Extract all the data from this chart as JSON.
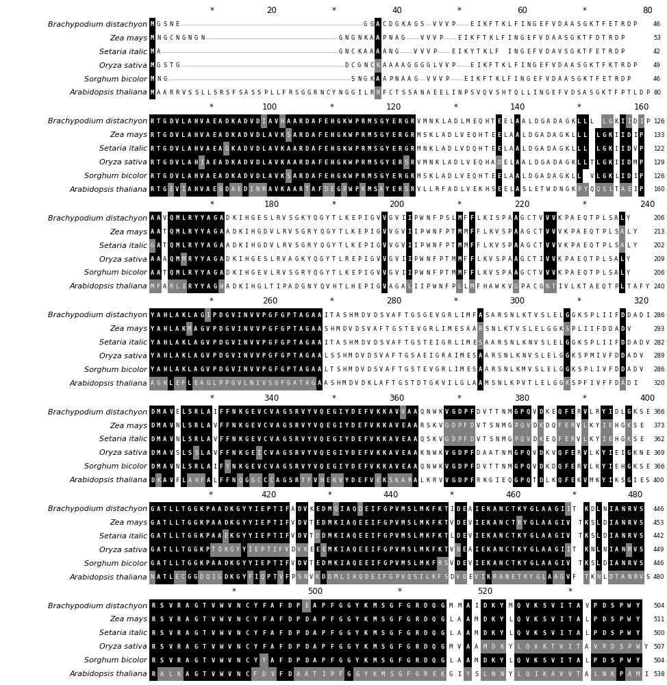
{
  "fig_width": 9.74,
  "fig_height": 10.0,
  "dpi": 100,
  "background": "#ffffff",
  "seq_font_size": 6.2,
  "species_font_size": 8.0,
  "ruler_font_size": 8.5,
  "color_conserved": "#111111",
  "color_similar": "#888888",
  "color_gap_line": "#aaaaaa",
  "blocks": [
    {
      "ruler": [
        [
          "*",
          10
        ],
        [
          "20",
          19.5
        ],
        [
          "*",
          29.5
        ],
        [
          "40",
          39.5
        ],
        [
          "*",
          49.5
        ],
        [
          "60",
          59.5
        ],
        [
          "*",
          69.5
        ],
        [
          "80",
          79.5
        ]
      ],
      "seqs": [
        [
          "Brachypodium distachyon",
          "MGSNE-----------------------------GGACDGKAGS-VVVP--EIKFTKLFINGEFVDAASGKTFETRDP",
          46
        ],
        [
          "Zea mays",
          "MNGCNGNGN---------------------GNGNKAAPNAG--VVVP--EIKFTKLFINGEFVDAASGKTFDTRDP",
          53
        ],
        [
          "Setaria italic",
          "MA----------------------------GNCKAAAANG--VVVP--EIKYTKLF INGEFVDAVSGKTFETRDP",
          42
        ],
        [
          "Oryza sativa",
          "MGSTG--------------------------DCGNCKAAAAGGGGLVVP--EIKFTKLFINGEFVDAASGKTFKTRDP",
          49
        ],
        [
          "Sorghum bicolor",
          "MNG-----------------------------SNGKAAPNAAG-VVVP--EIKFTKLFINGEFVDAASGKTFETRDP",
          46
        ],
        [
          "Arabidopsis thaliana",
          "MAARRVSSLLSRSFSASSPLLFRSGGRNCYNGGILRRFCTSSANAEELINPSVQVSHTQLLINGEFVDSASGKTFPTLDP",
          80
        ]
      ]
    },
    {
      "ruler": [
        [
          "*",
          10
        ],
        [
          "100",
          19.5
        ],
        [
          "*",
          29.5
        ],
        [
          "120",
          39.5
        ],
        [
          "*",
          49.5
        ],
        [
          "140",
          59.5
        ],
        [
          "*",
          69.5
        ],
        [
          "160",
          79.5
        ]
      ],
      "seqs": [
        [
          "Brachypodium distachyon",
          "RTGDVLAHVAEADKADVDIAVHAARDAFEHGKWPRMSGYERGRVMNKLADLMEQHTEELAALDGADAGKLLL LGKIIDIP",
          126
        ],
        [
          "Zea mays",
          "RTGDVLAHVAEADKADVDLAVKSARDAFEHGKWPRMSGYERGRMSKLADLVEQHTEELAALDGADAGKLLL LGKIIDIP",
          133
        ],
        [
          "Setaria italic",
          "RTGDVLAHVAEAGKADVDLAVKAARDAFEHGKWPRMSGYERGRMNKLADLVDQHTEELAALDGADAGKLLL LGKIIDVP",
          122
        ],
        [
          "Oryza sativa",
          "RTGDVLAHIAEADKADVDLAVKAARDAFEHGKWPRMSGYERSRVMNKLADLVEQHADELAALDGADAGKLLTLGKIIDMP",
          129
        ],
        [
          "Sorghum bicolor",
          "RTGDVLAHVAEADKADVDLAVKSARDAFEHGKWPRMSGYERGRMSKLADLVEQHTEELAALDGADAGKLL VLGKLIDIP",
          126
        ],
        [
          "Arabidopsis thaliana",
          "RTGEVIAHVAEGDAEDINRAVKAARTAFDEGPWPKMSAYERSRVLLRFADLVEKHSEELASLETWDNGKPYQQSLTAEIP",
          160
        ]
      ]
    },
    {
      "ruler": [
        [
          "*",
          10
        ],
        [
          "180",
          19.5
        ],
        [
          "*",
          29.5
        ],
        [
          "200",
          39.5
        ],
        [
          "*",
          49.5
        ],
        [
          "220",
          59.5
        ],
        [
          "*",
          69.5
        ],
        [
          "240",
          79.5
        ]
      ],
      "seqs": [
        [
          "Brachypodium distachyon",
          "AAVQMLRYYAGADKIHGESLRVSGKYQGYTLKEPIGVVGVIIPWNFPSLMFFLKISPAAGCTVVVKPAEQTPLSALY",
          206
        ],
        [
          "Zea mays",
          "AATQMLRYYAGAADKIHGDVLRVSGRYQGYTLKEPIGVVGVIIPWNFPTMMFFLKVSPAAGCTVVVKPAEQTPLSALY",
          213
        ],
        [
          "Setaria italic",
          "GATQMLRYYAGAADKIHGDVLRVSGRYQGYTLKEPIGVVGVIIPWNFPTMMFFLKVSPAAGCTVVVKPAEQTPLSALY",
          202
        ],
        [
          "Oryza sativa",
          "AAAQMMRYYAGADKIHGESLRVAGKYQGYTLREPIGVVGVIIPWNFPTMMFFLKVSPAAGCTIVVKPAEQTPLSALY",
          209
        ],
        [
          "Sorghum bicolor",
          "AATQMLRYYAGADKIHGEVLRVSGRYQGYTLKEPIGVVGVIIPWNFPTMMFFLKVSPAAGCTVVVKPAEQTPLSALY",
          206
        ],
        [
          "Arabidopsis thaliana",
          "MFARLERYYAGWADKIHGLTIPADGNYQVHTLHEPIGVAGALIIPWNFPLLMFHAWKVGPACGNTIVLKTAEQTPLTAFY",
          240
        ]
      ]
    },
    {
      "ruler": [
        [
          "*",
          10
        ],
        [
          "260",
          19.5
        ],
        [
          "*",
          29.5
        ],
        [
          "280",
          39.5
        ],
        [
          "*",
          49.5
        ],
        [
          "300",
          59.5
        ],
        [
          "*",
          69.5
        ],
        [
          "320",
          79.5
        ]
      ],
      "seqs": [
        [
          "Brachypodium distachyon",
          "YAHLAKLAGIPDGVINVVPGFGPTAGAAITASHMDVDSVAFTGSGEVGRLIMFASARSNLKTVSLELGGKSPLIIFDDADI",
          286
        ],
        [
          "Zea mays",
          "YAHLAKMAGVPDGVINVVPGFGPTAGAASHMDVDSVAFTGSTEVGRLIMESAARSNLKTVSLELGGKSPLIIFDDADV",
          293
        ],
        [
          "Setaria italic",
          "YAHLAKLAGVPDGVINVVPGFGPTAGAAITASHMDVDSVAFTGSTEIGRLIMESAARSNLKNVSLELGGKSPLIIFDDADV",
          282
        ],
        [
          "Oryza sativa",
          "YAHLAKLAGVPDGVINVVPGFGPTAGAALSSHMDVDSVAFTGSAEIGRAIMESAARSNLKNVSLELGGKSPMIVFDDADV",
          289
        ],
        [
          "Sorghum bicolor",
          "YAHLAKLAGVPDGVINVVPGFGPTAGAALTSHMDVDSVAFTGSTEVGRLIMESAARSNLKMVSLELGGKSPLIVFDDADV",
          286
        ],
        [
          "Arabidopsis thaliana",
          "AGKLEFLEAGLPPGVLNIVSGFGATAGAASHMDVDKLAFTGSTDTGKVILGLAAMSNLKPVTLELGGKSPFIVFFDADI",
          320
        ]
      ]
    },
    {
      "ruler": [
        [
          "*",
          10
        ],
        [
          "340",
          19.5
        ],
        [
          "*",
          29.5
        ],
        [
          "360",
          39.5
        ],
        [
          "*",
          49.5
        ],
        [
          "380",
          59.5
        ],
        [
          "*",
          69.5
        ],
        [
          "400",
          79.5
        ]
      ],
      "seqs": [
        [
          "Brachypodium distachyon",
          "DMAVELSRLAIFFNKGEVCVAGSRVYVQEGIYDEFVKKAVVAAQNWKVGDPFDVTTNMGPQVDKEQFERVLRYIDLGKSE",
          366
        ],
        [
          "Zea mays",
          "DMAVNLSRLAVFFNKGEVCVAGSRVYVQEGIYDEFVKKAVEAARSKVGDPFDVTSNMGPQVDKDQFERVLKYIEHGKSE",
          373
        ],
        [
          "Setaria italic",
          "DMAVNLSRLAVFFNKGEVCVAGSRVYVQEGIYDEFVKKAVEAAQSKVGDPFDVTSNMGPQVDKEQFERVLKYIEHGKSE",
          362
        ],
        [
          "Oryza sativa",
          "DMAVSLSSLAVFFNKGEICVAGSRVYVQEGIYDEFVKKAVEAAKNWKVGDPFDAATNMGPQVDKVQFERVLKYIEIGKNE",
          369
        ],
        [
          "Sorghum bicolor",
          "DMAVNLSRLAIFYNKGEVCVAGSRVYVQEGIYDEFVKKAVEAAQNWKVGDPFDVTTNMGPQVDKDQFERVLKYIEHGKSE",
          366
        ],
        [
          "Arabidopsis thaliana",
          "DKAVFLAHFALFFNQGGCCCAGSRTFVHEKVYDEFVEKSKARALKRVVGDPFRKGIEQGPQTDLKQFEKVMKYIKSGIES",
          400
        ]
      ]
    },
    {
      "ruler": [
        [
          "*",
          10
        ],
        [
          "420",
          19.5
        ],
        [
          "*",
          29.5
        ],
        [
          "440",
          39.5
        ],
        [
          "*",
          49.5
        ],
        [
          "460",
          59.5
        ],
        [
          "*",
          69.5
        ],
        [
          "480",
          79.5
        ]
      ],
      "seqs": [
        [
          "Brachypodium distachyon",
          "GATLLTGGKPAADKGYYIEPTIFADVKEDMQIAQDEIFGPVMSLMKFKTIDEAIEKANCTKYGLAAGIIT KDLNIANRVS",
          446
        ],
        [
          "Zea mays",
          "GATLLTGGKPAADKGYYIEPTIFVDVTEDMKIAQEEIFGPVMSLMKFKTVDEVIEKANCTRYGLAAGIV TKSLDIANRVS",
          453
        ],
        [
          "Setaria italic",
          "GATLLTGGKPAAEKGYYIEPTIFVDVTDDMKIAQEEIFGPVMSLMKFKTLDEVIEKANCTKYGLAAGIV TKSLDIANRVS",
          442
        ],
        [
          "Oryza sativa",
          "GATLLTGGKPTDKGYYIEPTIFVDVKEEEMKIAQEEIFGPVMSLMKFKTVBEAIEKANCTKYGLAAGIIT KNLNIANMVS",
          449
        ],
        [
          "Sorghum bicolor",
          "GATLLTGGKPAADKGYYIEPTIFVDVTEDMKIAQEEIFGPVMSLMKFRSVDEVIEKANCTKYGLAAGIV TKSLDIANRVS",
          446
        ],
        [
          "Arabidopsis thaliana",
          "NATLECGGDQIGDKGYFIQPTVFPSNVKDDMLIAQDEIFGPVQSILKFSDVDEVIKRANETKYGLAAGVF TKNLDTANRVS",
          480
        ]
      ]
    },
    {
      "ruler": [
        [
          "*",
          10
        ],
        [
          "500",
          19.5
        ],
        [
          "*",
          29.5
        ],
        [
          "520",
          39.5
        ],
        [
          "*",
          49.5
        ]
      ],
      "seqs": [
        [
          "Brachypodium distachyon",
          "RSVRAGTVWVNCYFAFDPEAPFGGYKMSGFGRDQGMMAIDKYMQVKSVITAVPDSPWY",
          504
        ],
        [
          "Zea mays",
          "RSVRAGTVWVNCYFAFDPDAPFGGYKMSGFGRDQGLAAMDKYLQVKSVITALPDSPWY",
          511
        ],
        [
          "Setaria italic",
          "RSVRAGTVWVNCYFAFDPDAPFGGYKMSGFGRDQGLAAMDKYLQVKSVITALPDSPWY",
          500
        ],
        [
          "Oryza sativa",
          "RSVRAGTVWVNCYFAFDPDAPFGGYKMSGFGRDQGMVAAMDKYLQVKTVITAVPDSPWY",
          507
        ],
        [
          "Sorghum bicolor",
          "RSVRAGTVWVNCYYAFDPDAPFGGYKMSGFGRDQGLAAMDKYLQVKSVITALPDSPWY",
          504
        ],
        [
          "Arabidopsis thaliana",
          "RALKAGTVWVNCFDVFDAATIPFGGYKMSGFGREKGIYSLNNYLQIKAVVTALNKPAMI",
          538
        ]
      ]
    }
  ]
}
